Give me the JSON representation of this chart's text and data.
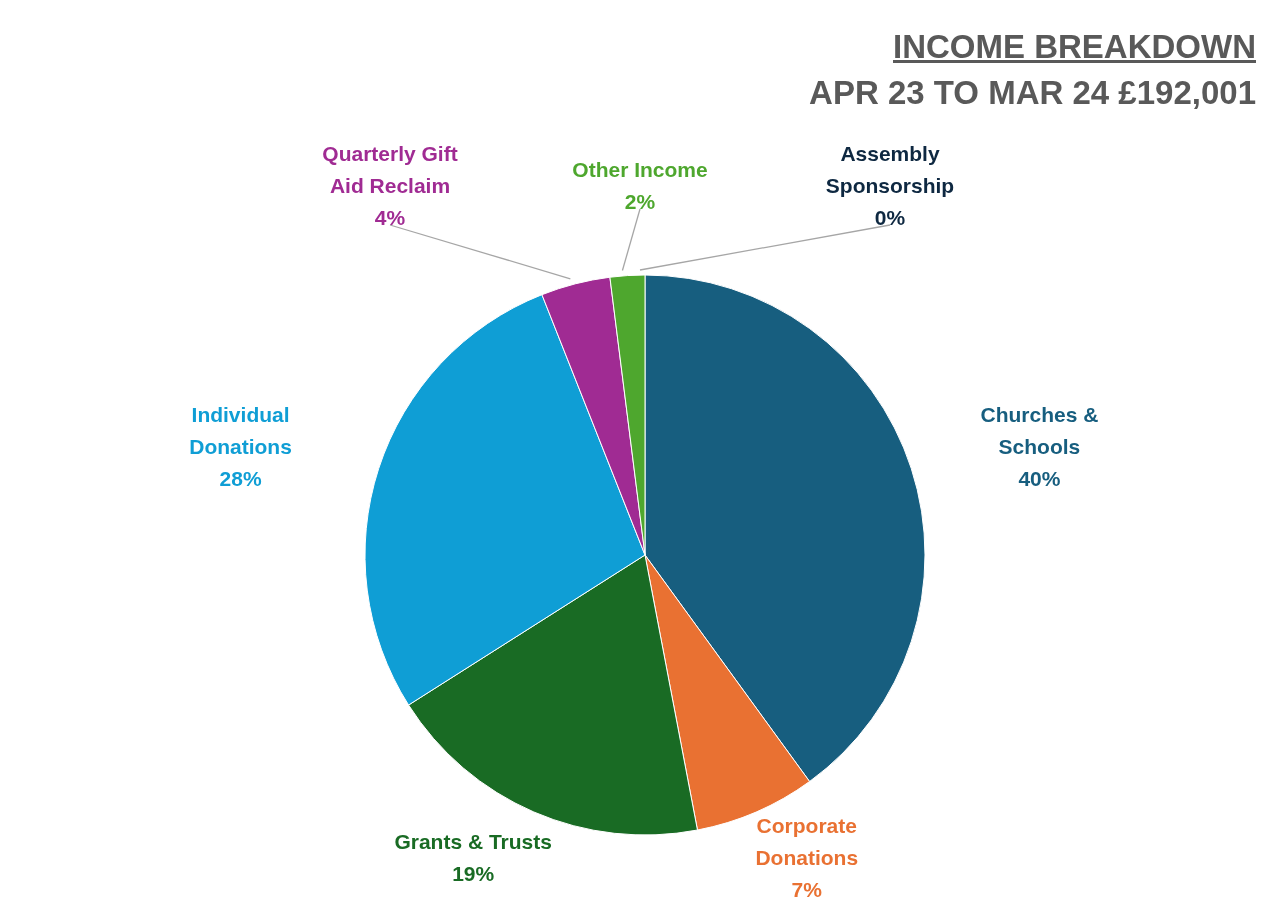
{
  "chart_data": {
    "type": "pie",
    "title": "INCOME BREAKDOWN",
    "subtitle": "APR 23 TO MAR 24 £192,001",
    "categories": [
      "Churches & Schools",
      "Corporate Donations",
      "Grants & Trusts",
      "Individual Donations",
      "Quarterly Gift Aid Reclaim",
      "Other Income",
      "Assembly Sponsorship"
    ],
    "values": [
      40,
      7,
      19,
      28,
      4,
      2,
      0
    ],
    "value_labels": [
      "40%",
      "7%",
      "19%",
      "28%",
      "4%",
      "2%",
      "0%"
    ],
    "colors": [
      "#175e7f",
      "#e97132",
      "#196b24",
      "#0f9ed5",
      "#a02b93",
      "#4ea72e",
      "#0e2841"
    ],
    "legend": false
  }
}
